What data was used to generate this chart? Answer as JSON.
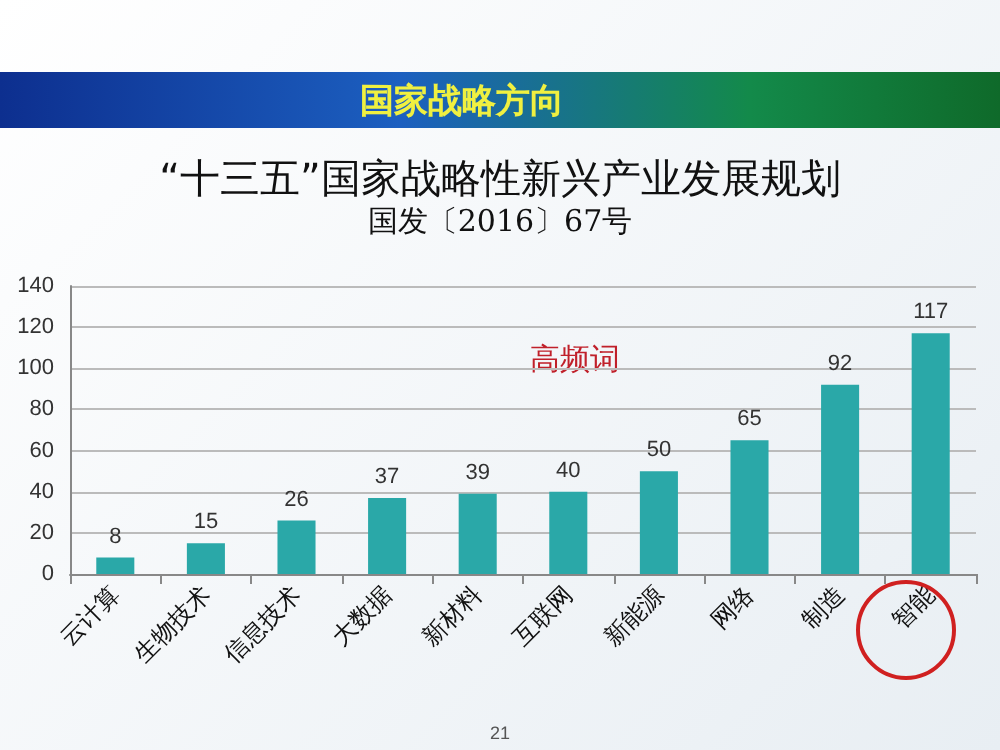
{
  "chart_data": {
    "type": "bar",
    "title": "“十三五”国家战略性新兴产业发展规划",
    "subtitle": "国发〔2016〕67号",
    "annotations": [
      "国家战略方向",
      "高频词",
      "21"
    ],
    "categories": [
      "云计算",
      "生物技术",
      "信息技术",
      "大数据",
      "新材料",
      "互联网",
      "新能源",
      "网络",
      "制造",
      "智能"
    ],
    "values": [
      8,
      15,
      26,
      37,
      39,
      40,
      50,
      65,
      92,
      117
    ],
    "color": "#2aa8a8",
    "ylim": [
      0,
      140
    ],
    "yticks": [
      0,
      20,
      40,
      60,
      80,
      100,
      120,
      140
    ],
    "grid": "y",
    "data_labels": true
  }
}
